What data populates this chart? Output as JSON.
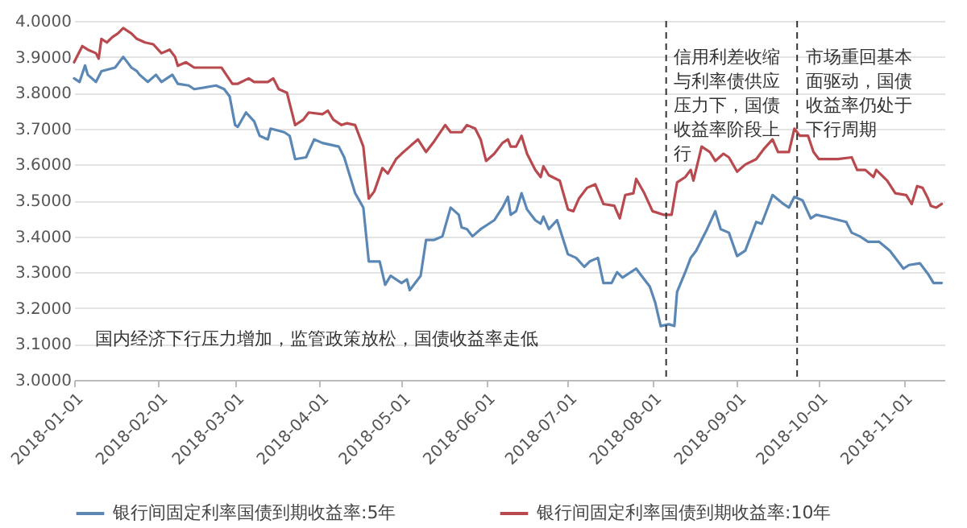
{
  "chart_data": {
    "type": "line",
    "x": [
      "2018-01-01",
      "2018-01-03",
      "2018-01-05",
      "2018-01-06",
      "2018-01-09",
      "2018-01-11",
      "2018-01-16",
      "2018-01-19",
      "2018-01-22",
      "2018-01-24",
      "2018-01-25",
      "2018-01-28",
      "2018-01-31",
      "2018-02-02",
      "2018-02-06",
      "2018-02-08",
      "2018-02-12",
      "2018-02-14",
      "2018-02-22",
      "2018-02-25",
      "2018-02-27",
      "2018-03-01",
      "2018-03-02",
      "2018-03-05",
      "2018-03-08",
      "2018-03-10",
      "2018-03-13",
      "2018-03-14",
      "2018-03-19",
      "2018-03-21",
      "2018-03-23",
      "2018-03-27",
      "2018-03-30",
      "2018-04-02",
      "2018-04-08",
      "2018-04-10",
      "2018-04-14",
      "2018-04-17",
      "2018-04-19",
      "2018-04-23",
      "2018-04-25",
      "2018-04-27",
      "2018-05-01",
      "2018-05-03",
      "2018-05-04",
      "2018-05-08",
      "2018-05-10",
      "2018-05-13",
      "2018-05-16",
      "2018-05-19",
      "2018-05-22",
      "2018-05-23",
      "2018-05-25",
      "2018-05-27",
      "2018-05-30",
      "2018-06-01",
      "2018-06-04",
      "2018-06-07",
      "2018-06-09",
      "2018-06-10",
      "2018-06-12",
      "2018-06-14",
      "2018-06-16",
      "2018-06-19",
      "2018-06-21",
      "2018-06-22",
      "2018-06-24",
      "2018-06-27",
      "2018-07-01",
      "2018-07-04",
      "2018-07-07",
      "2018-07-09",
      "2018-07-12",
      "2018-07-14",
      "2018-07-17",
      "2018-07-19",
      "2018-07-21",
      "2018-07-26",
      "2018-07-28",
      "2018-07-31",
      "2018-08-02",
      "2018-08-04",
      "2018-08-07",
      "2018-08-09",
      "2018-08-10",
      "2018-08-13",
      "2018-08-15",
      "2018-08-17",
      "2018-08-19",
      "2018-08-21",
      "2018-08-24",
      "2018-08-26",
      "2018-08-29",
      "2018-09-01",
      "2018-09-04",
      "2018-09-08",
      "2018-09-10",
      "2018-09-14",
      "2018-09-18",
      "2018-09-20",
      "2018-09-22",
      "2018-09-25",
      "2018-09-28",
      "2018-09-30",
      "2018-10-03",
      "2018-10-11",
      "2018-10-13",
      "2018-10-16",
      "2018-10-19",
      "2018-10-23",
      "2018-10-27",
      "2018-11-01",
      "2018-11-03",
      "2018-11-07",
      "2018-11-10",
      "2018-11-12",
      "2018-11-15"
    ],
    "series": [
      {
        "name": "银行间固定利率国债到期收益率:5年",
        "color": "#5b87b5",
        "values": [
          3.84,
          3.83,
          3.876,
          3.85,
          3.83,
          3.86,
          3.87,
          3.9,
          3.87,
          3.86,
          3.85,
          3.83,
          3.85,
          3.83,
          3.85,
          3.825,
          3.82,
          3.81,
          3.82,
          3.81,
          3.79,
          3.71,
          3.705,
          3.745,
          3.72,
          3.68,
          3.67,
          3.7,
          3.69,
          3.68,
          3.615,
          3.62,
          3.67,
          3.66,
          3.65,
          3.62,
          3.52,
          3.48,
          3.33,
          3.33,
          3.265,
          3.29,
          3.27,
          3.28,
          3.25,
          3.29,
          3.39,
          3.39,
          3.4,
          3.48,
          3.46,
          3.425,
          3.42,
          3.4,
          3.42,
          3.43,
          3.445,
          3.48,
          3.51,
          3.46,
          3.47,
          3.52,
          3.475,
          3.445,
          3.435,
          3.455,
          3.42,
          3.445,
          3.35,
          3.34,
          3.315,
          3.33,
          3.34,
          3.27,
          3.27,
          3.3,
          3.285,
          3.31,
          3.29,
          3.26,
          3.215,
          3.15,
          3.155,
          3.15,
          3.245,
          3.3,
          3.34,
          3.36,
          3.39,
          3.42,
          3.47,
          3.42,
          3.41,
          3.345,
          3.36,
          3.44,
          3.435,
          3.515,
          3.49,
          3.48,
          3.51,
          3.5,
          3.45,
          3.46,
          3.455,
          3.44,
          3.41,
          3.4,
          3.385,
          3.385,
          3.36,
          3.31,
          3.32,
          3.325,
          3.295,
          3.27,
          3.27
        ]
      },
      {
        "name": "银行间固定利率国债到期收益率:10年",
        "color": "#b84a4f",
        "x": [
          "2018-01-01",
          "2018-01-04",
          "2018-01-06",
          "2018-01-09",
          "2018-01-10",
          "2018-01-11",
          "2018-01-13",
          "2018-01-15",
          "2018-01-17",
          "2018-01-19",
          "2018-01-22",
          "2018-01-24",
          "2018-01-27",
          "2018-01-30",
          "2018-02-02",
          "2018-02-05",
          "2018-02-07",
          "2018-02-08",
          "2018-02-11",
          "2018-02-14",
          "2018-02-24",
          "2018-02-28",
          "2018-03-02",
          "2018-03-06",
          "2018-03-08",
          "2018-03-13",
          "2018-03-15",
          "2018-03-17",
          "2018-03-20",
          "2018-03-23",
          "2018-03-26",
          "2018-03-28",
          "2018-04-02",
          "2018-04-04",
          "2018-04-06",
          "2018-04-09",
          "2018-04-11",
          "2018-04-14",
          "2018-04-17",
          "2018-04-19",
          "2018-04-21",
          "2018-04-24",
          "2018-04-26",
          "2018-04-29",
          "2018-05-01",
          "2018-05-04",
          "2018-05-07",
          "2018-05-10",
          "2018-05-13",
          "2018-05-17",
          "2018-05-19",
          "2018-05-23",
          "2018-05-25",
          "2018-05-28",
          "2018-05-30",
          "2018-06-01",
          "2018-06-04",
          "2018-06-07",
          "2018-06-09",
          "2018-06-10",
          "2018-06-12",
          "2018-06-14",
          "2018-06-16",
          "2018-06-19",
          "2018-06-21",
          "2018-06-22",
          "2018-06-24",
          "2018-06-28",
          "2018-07-01",
          "2018-07-03",
          "2018-07-05",
          "2018-07-08",
          "2018-07-11",
          "2018-07-14",
          "2018-07-18",
          "2018-07-20",
          "2018-07-22",
          "2018-07-25",
          "2018-07-26",
          "2018-07-29",
          "2018-08-01",
          "2018-08-05",
          "2018-08-08",
          "2018-08-10",
          "2018-08-13",
          "2018-08-15",
          "2018-08-16",
          "2018-08-19",
          "2018-08-22",
          "2018-08-24",
          "2018-08-27",
          "2018-08-29",
          "2018-09-01",
          "2018-09-04",
          "2018-09-08",
          "2018-09-11",
          "2018-09-14",
          "2018-09-16",
          "2018-09-20",
          "2018-09-22",
          "2018-09-24",
          "2018-09-27",
          "2018-09-29",
          "2018-10-01",
          "2018-10-08",
          "2018-10-13",
          "2018-10-15",
          "2018-10-18",
          "2018-10-21",
          "2018-10-22",
          "2018-10-26",
          "2018-10-29",
          "2018-11-02",
          "2018-11-04",
          "2018-11-06",
          "2018-11-08",
          "2018-11-10",
          "2018-11-11",
          "2018-11-13",
          "2018-11-15"
        ],
        "values": [
          3.885,
          3.93,
          3.92,
          3.91,
          3.895,
          3.95,
          3.94,
          3.955,
          3.965,
          3.98,
          3.965,
          3.95,
          3.94,
          3.935,
          3.91,
          3.92,
          3.9,
          3.875,
          3.885,
          3.87,
          3.87,
          3.825,
          3.825,
          3.84,
          3.83,
          3.83,
          3.84,
          3.81,
          3.8,
          3.71,
          3.725,
          3.745,
          3.74,
          3.75,
          3.725,
          3.71,
          3.715,
          3.71,
          3.65,
          3.505,
          3.525,
          3.59,
          3.575,
          3.615,
          3.63,
          3.65,
          3.67,
          3.635,
          3.665,
          3.71,
          3.69,
          3.69,
          3.71,
          3.7,
          3.67,
          3.61,
          3.63,
          3.66,
          3.67,
          3.65,
          3.65,
          3.68,
          3.63,
          3.585,
          3.565,
          3.595,
          3.57,
          3.555,
          3.475,
          3.47,
          3.505,
          3.535,
          3.545,
          3.49,
          3.485,
          3.45,
          3.515,
          3.52,
          3.56,
          3.52,
          3.47,
          3.46,
          3.46,
          3.55,
          3.565,
          3.585,
          3.555,
          3.65,
          3.635,
          3.61,
          3.63,
          3.62,
          3.58,
          3.6,
          3.615,
          3.645,
          3.67,
          3.635,
          3.635,
          3.7,
          3.68,
          3.68,
          3.635,
          3.615,
          3.615,
          3.62,
          3.585,
          3.585,
          3.565,
          3.585,
          3.555,
          3.52,
          3.515,
          3.49,
          3.54,
          3.535,
          3.505,
          3.485,
          3.48,
          3.49
        ]
      }
    ],
    "xlim": [
      "2018-01-01",
      "2018-11-16"
    ],
    "xticks": [
      "2018-01-01",
      "2018-02-01",
      "2018-03-01",
      "2018-04-01",
      "2018-05-01",
      "2018-06-01",
      "2018-07-01",
      "2018-08-01",
      "2018-09-01",
      "2018-10-01",
      "2018-11-01"
    ],
    "ylim": [
      3,
      4
    ],
    "yticks": [
      {
        "value": 3,
        "label": "3.0000"
      },
      {
        "value": 3.1,
        "label": "3.1000"
      },
      {
        "value": 3.2,
        "label": "3.2000"
      },
      {
        "value": 3.3,
        "label": "3.3000"
      },
      {
        "value": 3.4,
        "label": "3.4000"
      },
      {
        "value": 3.5,
        "label": "3.5000"
      },
      {
        "value": 3.6,
        "label": "3.6000"
      },
      {
        "value": 3.7,
        "label": "3.7000"
      },
      {
        "value": 3.8,
        "label": "3.8000"
      },
      {
        "value": 3.9,
        "label": "3.9000"
      },
      {
        "value": 4,
        "label": "4.0000"
      }
    ],
    "grid": "y",
    "legend": "bottom",
    "marker": "none",
    "line_style": "solid",
    "ref_lines": [
      {
        "axis": "x",
        "value": "2018-08-06",
        "color": "#333333",
        "line_style": "dashed"
      },
      {
        "axis": "x",
        "value": "2018-09-23",
        "color": "#333333",
        "line_style": "dashed"
      }
    ],
    "annotations": [
      "国内经济下行压力增加，监管政策放松，国债收益率走低",
      "信用利差收缩与利率债供应压力下，国债收益率阶段上行",
      "市场重回基本面驱动，国债收益率仍处于下行周期"
    ]
  }
}
